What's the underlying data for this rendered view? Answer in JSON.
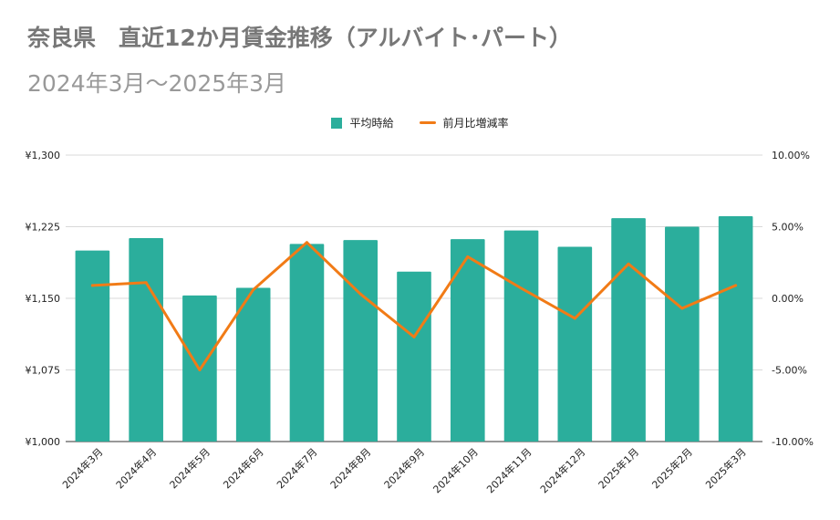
{
  "title": "奈良県　直近12か月賃金推移（アルバイト･パート）",
  "subtitle": "2024年3月～2025年3月",
  "colors": {
    "bar": "#2bae9c",
    "line": "#f17b16",
    "grid": "#d9d9d9",
    "text": "#222222"
  },
  "chart_data": {
    "type": "bar",
    "title": "奈良県　直近12か月賃金推移（アルバイト･パート）",
    "subtitle": "2024年3月～2025年3月",
    "categories": [
      "2024年3月",
      "2024年4月",
      "2024年5月",
      "2024年6月",
      "2024年7月",
      "2024年8月",
      "2024年9月",
      "2024年10月",
      "2024年11月",
      "2024年12月",
      "2025年1月",
      "2025年2月",
      "2025年3月"
    ],
    "series": [
      {
        "name": "平均時給",
        "type": "bar",
        "axis": "left",
        "values": [
          1200,
          1213,
          1153,
          1161,
          1207,
          1211,
          1178,
          1212,
          1221,
          1204,
          1234,
          1225,
          1236
        ]
      },
      {
        "name": "前月比増減率",
        "type": "line",
        "axis": "right",
        "values": [
          0.9,
          1.1,
          -5.0,
          0.6,
          3.9,
          0.3,
          -2.7,
          2.9,
          0.7,
          -1.4,
          2.4,
          -0.7,
          0.9
        ]
      }
    ],
    "left_axis": {
      "min": 1000,
      "max": 1300,
      "ticks": [
        "¥1,000",
        "¥1,075",
        "¥1,150",
        "¥1,225",
        "¥1,300"
      ]
    },
    "right_axis": {
      "min": -10,
      "max": 10,
      "ticks": [
        "-10.00%",
        "-5.00%",
        "0.00%",
        "5.00%",
        "10.00%"
      ]
    },
    "legend": [
      "平均時給",
      "前月比増減率"
    ],
    "legend_position": "top-center",
    "grid": true
  }
}
